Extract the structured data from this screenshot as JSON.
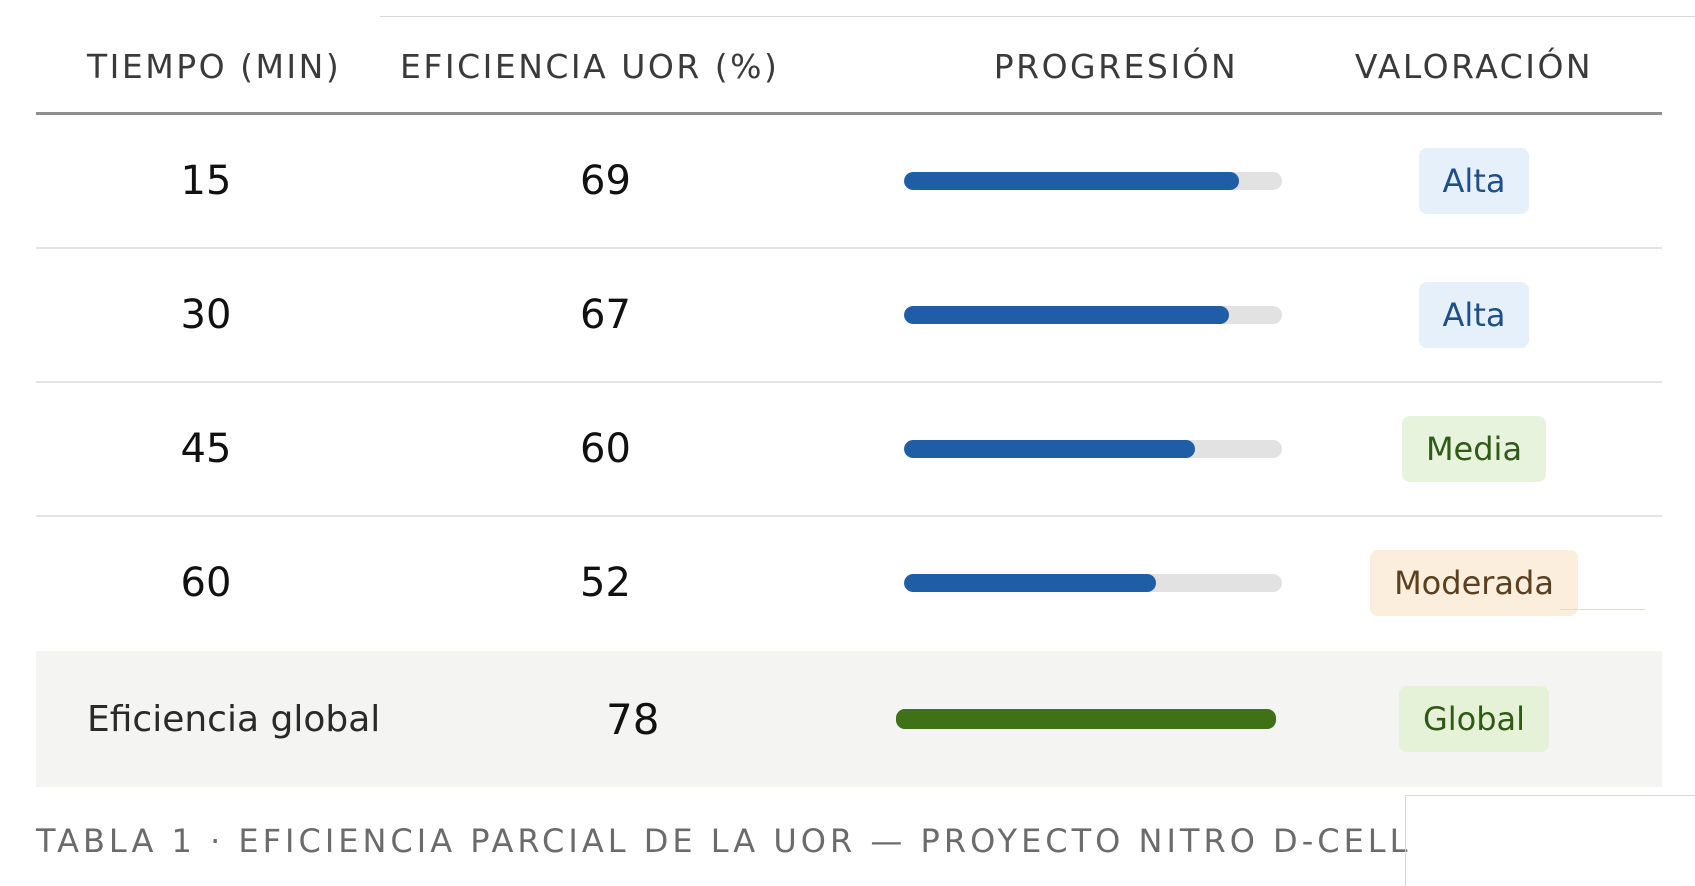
{
  "table": {
    "headers": {
      "time": "TIEMPO (MIN)",
      "efficiency": "EFICIENCIA UOR (%)",
      "progress": "PROGRESIÓN",
      "rating": "VALORACIÓN"
    },
    "rows": [
      {
        "time": "15",
        "efficiency": "69",
        "progress": 0.885,
        "rating": "Alta",
        "rating_kind": "alta"
      },
      {
        "time": "30",
        "efficiency": "67",
        "progress": 0.859,
        "rating": "Alta",
        "rating_kind": "alta"
      },
      {
        "time": "45",
        "efficiency": "60",
        "progress": 0.769,
        "rating": "Media",
        "rating_kind": "media"
      },
      {
        "time": "60",
        "efficiency": "52",
        "progress": 0.667,
        "rating": "Moderada",
        "rating_kind": "moderada"
      }
    ],
    "global": {
      "label": "Eficiencia global",
      "efficiency": "78",
      "progress": 1.0,
      "rating": "Global"
    }
  },
  "caption": "TABLA 1 · EFICIENCIA PARCIAL DE LA UOR — PROYECTO NITRO D-CELL",
  "colors": {
    "bar_fill": "#1f5da6",
    "bar_track": "#e2e2e2",
    "global_bar": "#3f7216",
    "global_row_bg": "#f4f4f2"
  }
}
